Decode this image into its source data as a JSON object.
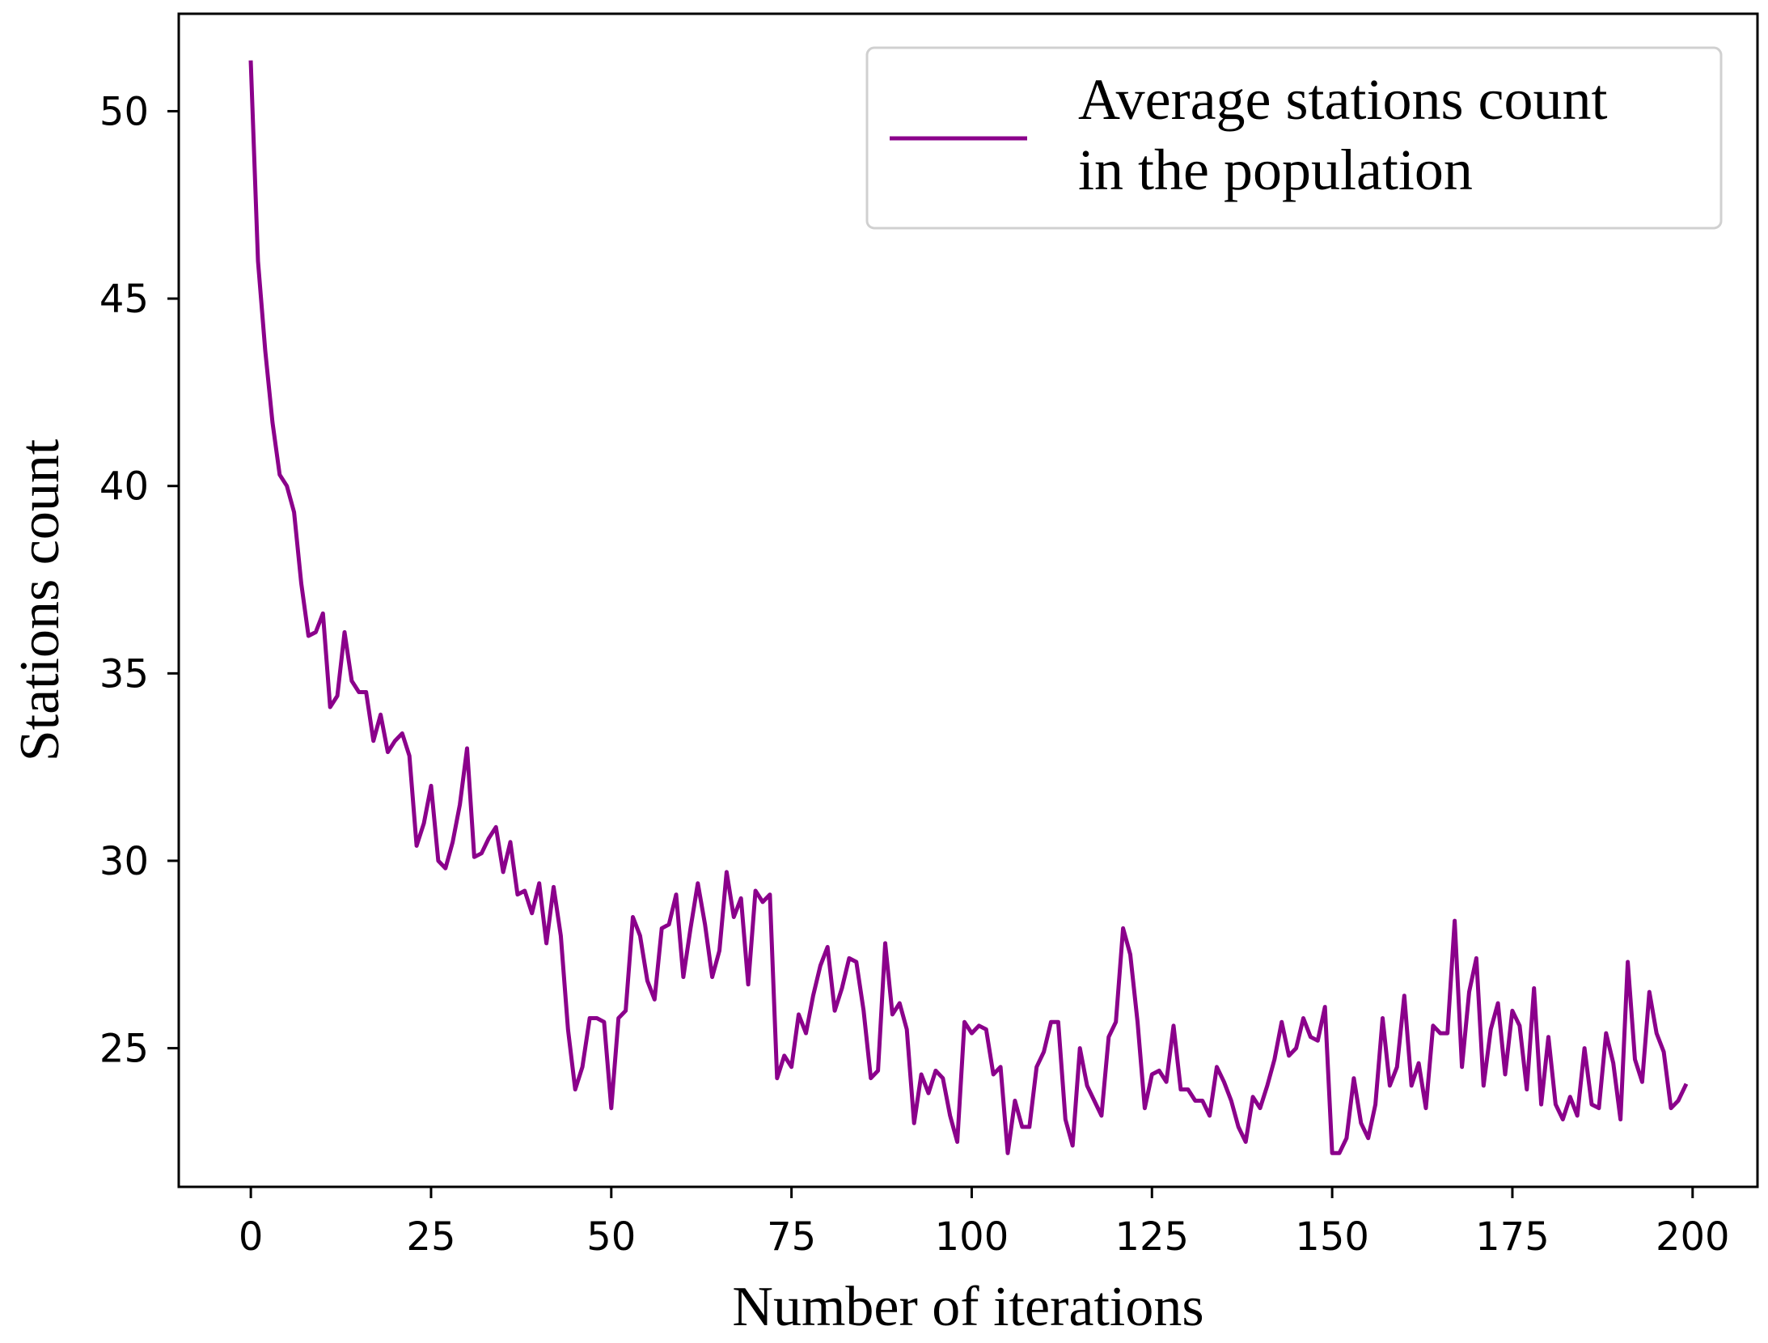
{
  "chart_data": {
    "type": "line",
    "title": "",
    "xlabel": "Number of iterations",
    "ylabel": "Stations count",
    "xlim": [
      -10,
      209
    ],
    "ylim": [
      21.3,
      52.6
    ],
    "xticks": [
      0,
      25,
      50,
      75,
      100,
      125,
      150,
      175,
      200
    ],
    "xtick_labels": [
      "0",
      "25",
      "50",
      "75",
      "100",
      "125",
      "150",
      "175",
      "200"
    ],
    "yticks": [
      25,
      30,
      35,
      40,
      45,
      50
    ],
    "ytick_labels": [
      "25",
      "30",
      "35",
      "40",
      "45",
      "50"
    ],
    "grid": false,
    "legend_position": "top-right",
    "series": [
      {
        "name": "Average stations count in the population",
        "legend_lines": [
          "Average stations count",
          "in the population"
        ],
        "color": "#8b008b",
        "x": [
          0,
          1,
          2,
          3,
          4,
          5,
          6,
          7,
          8,
          9,
          10,
          11,
          12,
          13,
          14,
          15,
          16,
          17,
          18,
          19,
          20,
          21,
          22,
          23,
          24,
          25,
          26,
          27,
          28,
          29,
          30,
          31,
          32,
          33,
          34,
          35,
          36,
          37,
          38,
          39,
          40,
          41,
          42,
          43,
          44,
          45,
          46,
          47,
          48,
          49,
          50,
          51,
          52,
          53,
          54,
          55,
          56,
          57,
          58,
          59,
          60,
          61,
          62,
          63,
          64,
          65,
          66,
          67,
          68,
          69,
          70,
          71,
          72,
          73,
          74,
          75,
          76,
          77,
          78,
          79,
          80,
          81,
          82,
          83,
          84,
          85,
          86,
          87,
          88,
          89,
          90,
          91,
          92,
          93,
          94,
          95,
          96,
          97,
          98,
          99,
          100,
          101,
          102,
          103,
          104,
          105,
          106,
          107,
          108,
          109,
          110,
          111,
          112,
          113,
          114,
          115,
          116,
          117,
          118,
          119,
          120,
          121,
          122,
          123,
          124,
          125,
          126,
          127,
          128,
          129,
          130,
          131,
          132,
          133,
          134,
          135,
          136,
          137,
          138,
          139,
          140,
          141,
          142,
          143,
          144,
          145,
          146,
          147,
          148,
          149,
          150,
          151,
          152,
          153,
          154,
          155,
          156,
          157,
          158,
          159,
          160,
          161,
          162,
          163,
          164,
          165,
          166,
          167,
          168,
          169,
          170,
          171,
          172,
          173,
          174,
          175,
          176,
          177,
          178,
          179,
          180,
          181,
          182,
          183,
          184,
          185,
          186,
          187,
          188,
          189,
          190,
          191,
          192,
          193,
          194,
          195,
          196,
          197,
          198,
          199
        ],
        "values": [
          51.3,
          46.0,
          43.6,
          41.7,
          40.3,
          40.0,
          39.3,
          37.4,
          36.0,
          36.1,
          36.6,
          34.1,
          34.4,
          36.1,
          34.8,
          34.5,
          34.5,
          33.2,
          33.9,
          32.9,
          33.2,
          33.4,
          32.8,
          30.4,
          31.0,
          32.0,
          30.0,
          29.8,
          30.5,
          31.5,
          33.0,
          30.1,
          30.2,
          30.6,
          30.9,
          29.7,
          30.5,
          29.1,
          29.2,
          28.6,
          29.4,
          27.8,
          29.3,
          28.0,
          25.5,
          23.9,
          24.5,
          25.8,
          25.8,
          25.7,
          23.4,
          25.8,
          26.0,
          28.5,
          28.0,
          26.8,
          26.3,
          28.2,
          28.3,
          29.1,
          26.9,
          28.2,
          29.4,
          28.3,
          26.9,
          27.6,
          29.7,
          28.5,
          29.0,
          26.7,
          29.2,
          28.9,
          29.1,
          24.2,
          24.8,
          24.5,
          25.9,
          25.4,
          26.4,
          27.2,
          27.7,
          26.0,
          26.6,
          27.4,
          27.3,
          26.0,
          24.2,
          24.4,
          27.8,
          25.9,
          26.2,
          25.5,
          23.0,
          24.3,
          23.8,
          24.4,
          24.2,
          23.2,
          22.5,
          25.7,
          25.4,
          25.6,
          25.5,
          24.3,
          24.5,
          22.2,
          23.6,
          22.9,
          22.9,
          24.5,
          24.9,
          25.7,
          25.7,
          23.1,
          22.4,
          25.0,
          24.0,
          23.6,
          23.2,
          25.3,
          25.7,
          28.2,
          27.5,
          25.7,
          23.4,
          24.3,
          24.4,
          24.1,
          25.6,
          23.9,
          23.9,
          23.6,
          23.6,
          23.2,
          24.5,
          24.1,
          23.6,
          22.9,
          22.5,
          23.7,
          23.4,
          24.0,
          24.7,
          25.7,
          24.8,
          25.0,
          25.8,
          25.3,
          25.2,
          26.1,
          22.2,
          22.2,
          22.6,
          24.2,
          23.0,
          22.6,
          23.5,
          25.8,
          24.0,
          24.5,
          26.4,
          24.0,
          24.6,
          23.4,
          25.6,
          25.4,
          25.4,
          28.4,
          24.5,
          26.5,
          27.4,
          24.0,
          25.5,
          26.2,
          24.3,
          26.0,
          25.6,
          23.9,
          26.6,
          23.5,
          25.3,
          23.5,
          23.1,
          23.7,
          23.2,
          25.0,
          23.5,
          23.4,
          25.4,
          24.6,
          23.1,
          27.3,
          24.7,
          24.1,
          26.5,
          25.4,
          24.9,
          23.4,
          23.6,
          24.0
        ]
      }
    ]
  }
}
